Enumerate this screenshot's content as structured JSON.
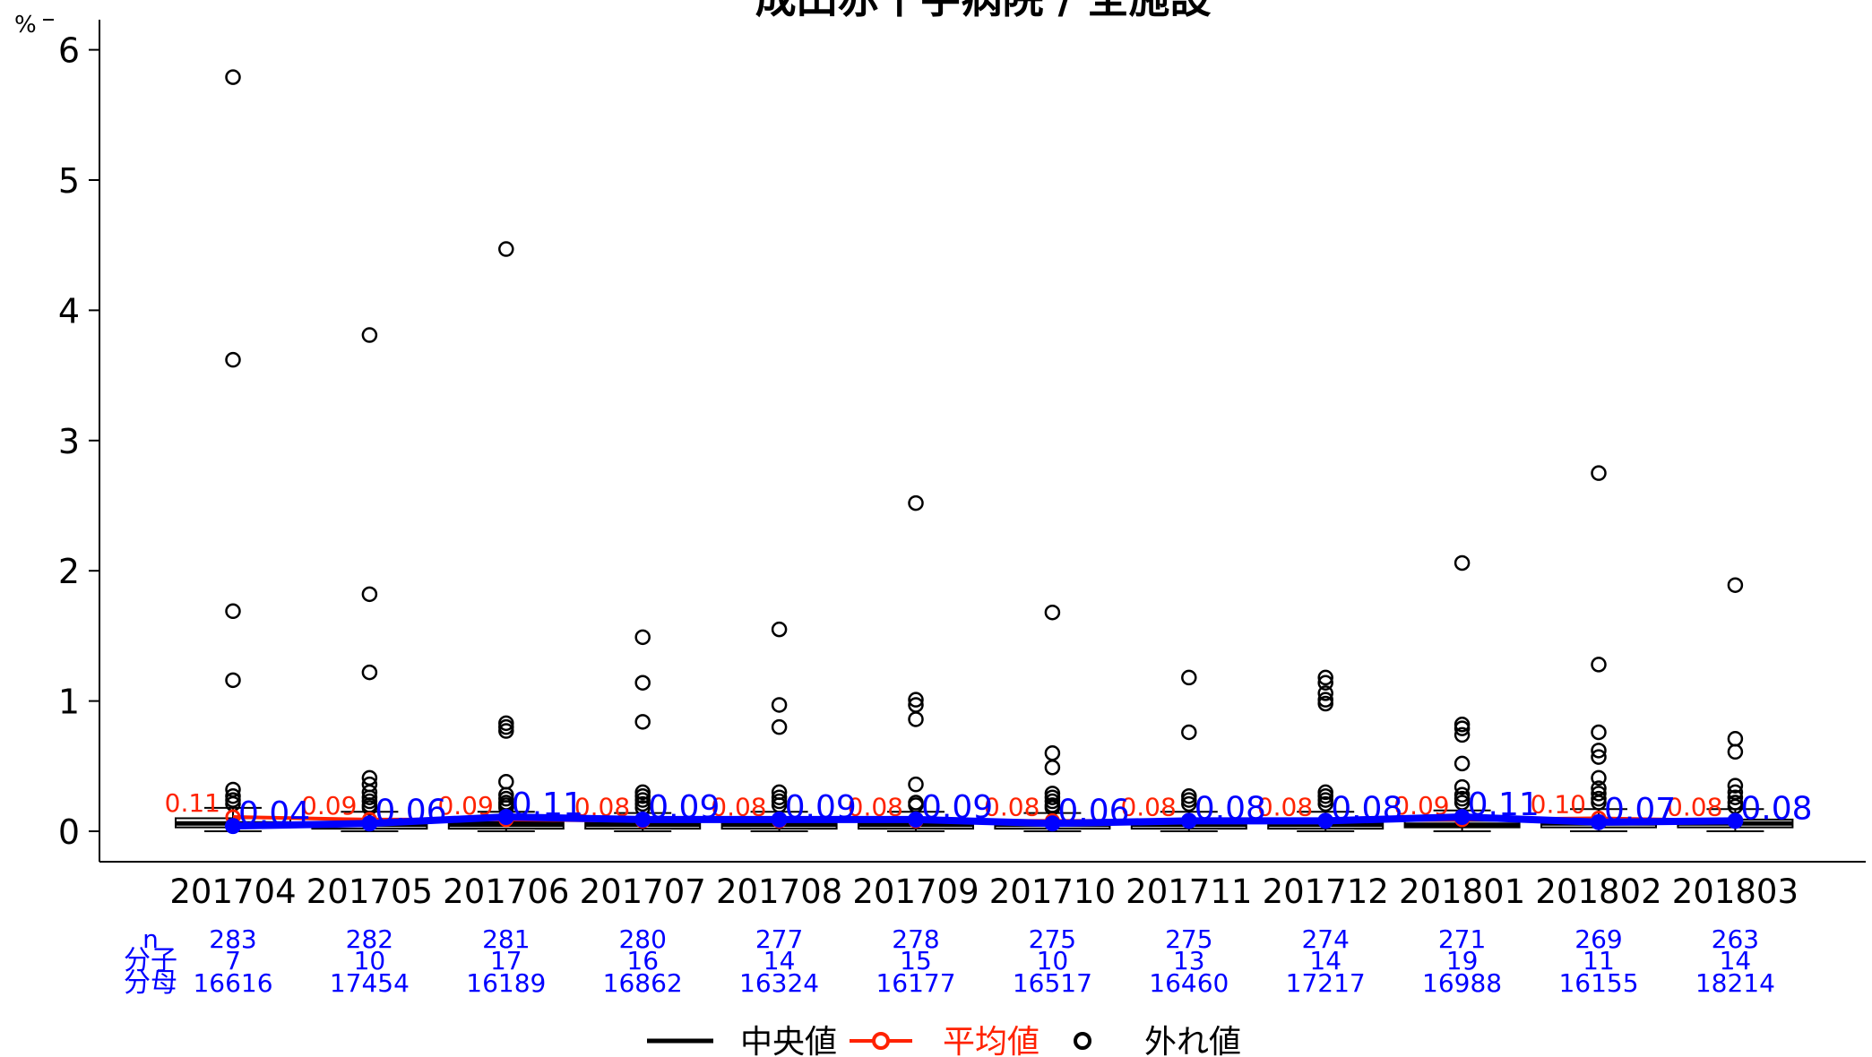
{
  "chart_data": {
    "type": "box",
    "title": "成田赤十字病院 / 全施設",
    "ylabel": "%",
    "ylim": [
      0,
      6
    ],
    "yticks": [
      0,
      1,
      2,
      3,
      4,
      5,
      6
    ],
    "grid": false,
    "categories": [
      "201704",
      "201705",
      "201706",
      "201707",
      "201708",
      "201709",
      "201710",
      "201711",
      "201712",
      "201801",
      "201802",
      "201803"
    ],
    "hospital_values": [
      0.04,
      0.06,
      0.11,
      0.09,
      0.09,
      0.09,
      0.06,
      0.08,
      0.08,
      0.11,
      0.07,
      0.08
    ],
    "hospital_labels": [
      "0.04",
      "0.06",
      "0.11",
      "0.09",
      "0.09",
      "0.09",
      "0.06",
      "0.08",
      "0.08",
      "0.11",
      "0.07",
      "0.08"
    ],
    "mean_values": [
      0.11,
      0.09,
      0.09,
      0.08,
      0.08,
      0.08,
      0.08,
      0.08,
      0.08,
      0.09,
      0.1,
      0.08
    ],
    "mean_labels": [
      "0.11",
      "0.09",
      "0.09",
      "0.08",
      "0.08",
      "0.08",
      "0.08",
      "0.08",
      "0.08",
      "0.09",
      "0.10",
      "0.08"
    ],
    "median_values": [
      0.06,
      0.05,
      0.05,
      0.05,
      0.05,
      0.05,
      0.05,
      0.05,
      0.05,
      0.05,
      0.06,
      0.06
    ],
    "box_q1": [
      0.03,
      0.02,
      0.02,
      0.02,
      0.02,
      0.02,
      0.02,
      0.02,
      0.02,
      0.03,
      0.03,
      0.03
    ],
    "box_q3": [
      0.1,
      0.07,
      0.07,
      0.07,
      0.07,
      0.07,
      0.07,
      0.07,
      0.07,
      0.08,
      0.09,
      0.09
    ],
    "whisker_low": [
      0,
      0,
      0,
      0,
      0,
      0,
      0,
      0,
      0,
      0,
      0,
      0
    ],
    "whisker_high": [
      0.18,
      0.15,
      0.15,
      0.14,
      0.15,
      0.15,
      0.14,
      0.15,
      0.15,
      0.16,
      0.17,
      0.17
    ],
    "outliers": [
      [
        5.79,
        3.62,
        1.69,
        1.16,
        0.32,
        0.27,
        0.24,
        0.21
      ],
      [
        3.81,
        1.82,
        1.22,
        0.41,
        0.36,
        0.3,
        0.26,
        0.23,
        0.2,
        0.18
      ],
      [
        4.47,
        0.83,
        0.8,
        0.77,
        0.38,
        0.28,
        0.25,
        0.22,
        0.2,
        0.18
      ],
      [
        1.49,
        1.14,
        0.84,
        0.3,
        0.27,
        0.24,
        0.21,
        0.18
      ],
      [
        1.55,
        0.97,
        0.8,
        0.3,
        0.26,
        0.23,
        0.2
      ],
      [
        2.52,
        1.01,
        0.97,
        0.86,
        0.36,
        0.22,
        0.2
      ],
      [
        1.68,
        0.6,
        0.49,
        0.29,
        0.26,
        0.23,
        0.2,
        0.18
      ],
      [
        1.18,
        0.76,
        0.27,
        0.24,
        0.21
      ],
      [
        1.18,
        1.14,
        1.06,
        1.01,
        0.98,
        0.3,
        0.27,
        0.24,
        0.21
      ],
      [
        2.06,
        0.82,
        0.79,
        0.74,
        0.52,
        0.34,
        0.28,
        0.25,
        0.22
      ],
      [
        2.75,
        1.28,
        0.76,
        0.62,
        0.57,
        0.41,
        0.33,
        0.29,
        0.25,
        0.22
      ],
      [
        1.89,
        0.71,
        0.61,
        0.35,
        0.3,
        0.26,
        0.22,
        0.19
      ]
    ],
    "table": {
      "row_labels": [
        "n",
        "分子",
        "分母"
      ],
      "n": [
        283,
        282,
        281,
        280,
        277,
        278,
        275,
        275,
        274,
        271,
        269,
        263
      ],
      "numerator": [
        7,
        10,
        17,
        16,
        14,
        15,
        10,
        13,
        14,
        19,
        11,
        14
      ],
      "denominator": [
        16616,
        17454,
        16189,
        16862,
        16324,
        16177,
        16517,
        16460,
        17217,
        16988,
        16155,
        18214
      ]
    },
    "legend": {
      "placement": "bottom-center",
      "median": "中央値",
      "mean": "平均値",
      "outlier": "外れ値"
    },
    "colors": {
      "hospital": "#0000ff",
      "mean": "#ff2200",
      "median": "#000000",
      "outlier": "#000000",
      "table_text": "#0000ff"
    }
  }
}
